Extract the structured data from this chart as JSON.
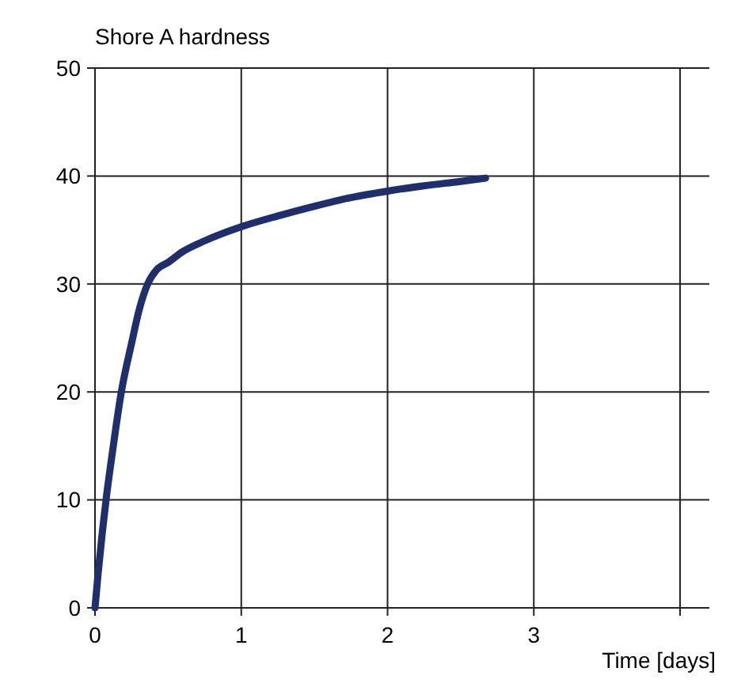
{
  "chart_data": {
    "type": "line",
    "ylabel": "Shore A hardness",
    "xlabel": "Time [days]",
    "xlim": [
      0,
      4.2
    ],
    "xticks": [
      0,
      1,
      2,
      3,
      {
        "value": 4,
        "label": null
      }
    ],
    "ylim": [
      0,
      50
    ],
    "yticks": [
      0,
      10,
      20,
      30,
      40,
      50
    ],
    "grid": true,
    "line_style": "solid",
    "series": [
      {
        "color": "#1f2f6e",
        "x": [
          0,
          0.02,
          0.05,
          0.08,
          0.12,
          0.18,
          0.25,
          0.3,
          0.36,
          0.42,
          0.5,
          0.6,
          0.75,
          1,
          1.25,
          1.5,
          1.75,
          2,
          2.25,
          2.5,
          2.67
        ],
        "values": [
          0,
          3,
          7,
          10.5,
          14.5,
          20,
          24.5,
          27.5,
          30,
          31.3,
          32,
          33,
          34,
          35.3,
          36.3,
          37.2,
          38,
          38.6,
          39.1,
          39.5,
          39.8
        ]
      }
    ]
  }
}
